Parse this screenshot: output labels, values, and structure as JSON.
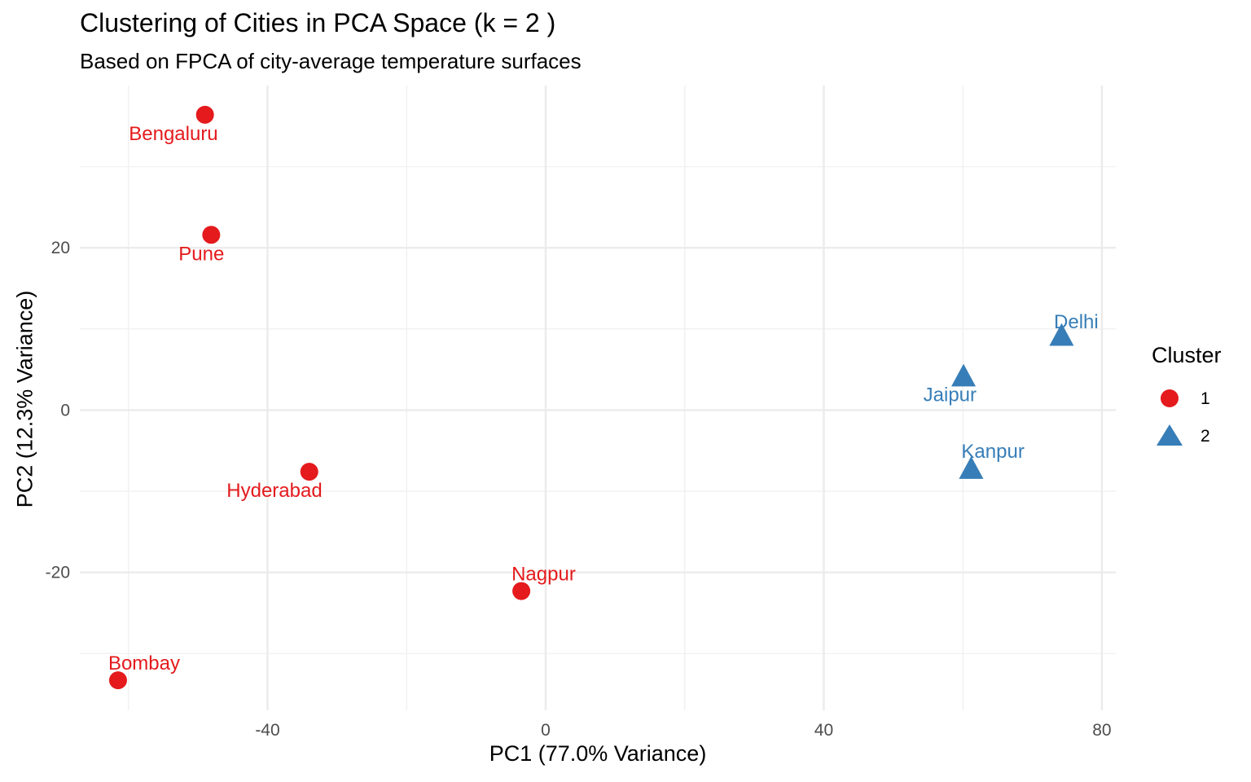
{
  "chart_data": {
    "type": "scatter",
    "title": "Clustering of Cities in PCA Space (k = 2 )",
    "subtitle": "Based on FPCA of city-average temperature surfaces",
    "xlabel": "PC1 (77.0% Variance)",
    "ylabel": "PC2 (12.3% Variance)",
    "xlim": [
      -67,
      82
    ],
    "ylim": [
      -37,
      40
    ],
    "x_ticks": [
      -40,
      0,
      40,
      80
    ],
    "y_ticks": [
      -20,
      0,
      20
    ],
    "grid": true,
    "legend": {
      "title": "Cluster",
      "placement": "right",
      "entries": [
        {
          "label": "1",
          "shape": "circle",
          "color": "#E41A1C"
        },
        {
          "label": "2",
          "shape": "triangle",
          "color": "#377EB8"
        }
      ]
    },
    "points": [
      {
        "label": "Bengaluru",
        "x": -49.0,
        "y": 36.4,
        "cluster": "1",
        "label_pos": "below-left"
      },
      {
        "label": "Pune",
        "x": -48.1,
        "y": 21.6,
        "cluster": "1",
        "label_pos": "below-left"
      },
      {
        "label": "Hyderabad",
        "x": -34.0,
        "y": -7.6,
        "cluster": "1",
        "label_pos": "below-left"
      },
      {
        "label": "Nagpur",
        "x": -3.5,
        "y": -22.3,
        "cluster": "1",
        "label_pos": "above-right"
      },
      {
        "label": "Bombay",
        "x": -61.5,
        "y": -33.3,
        "cluster": "1",
        "label_pos": "above-right"
      },
      {
        "label": "Delhi",
        "x": 74.2,
        "y": 9.2,
        "cluster": "2",
        "label_pos": "above"
      },
      {
        "label": "Jaipur",
        "x": 60.1,
        "y": 4.2,
        "cluster": "2",
        "label_pos": "below-left"
      },
      {
        "label": "Kanpur",
        "x": 61.2,
        "y": -7.2,
        "cluster": "2",
        "label_pos": "above-right"
      }
    ]
  }
}
